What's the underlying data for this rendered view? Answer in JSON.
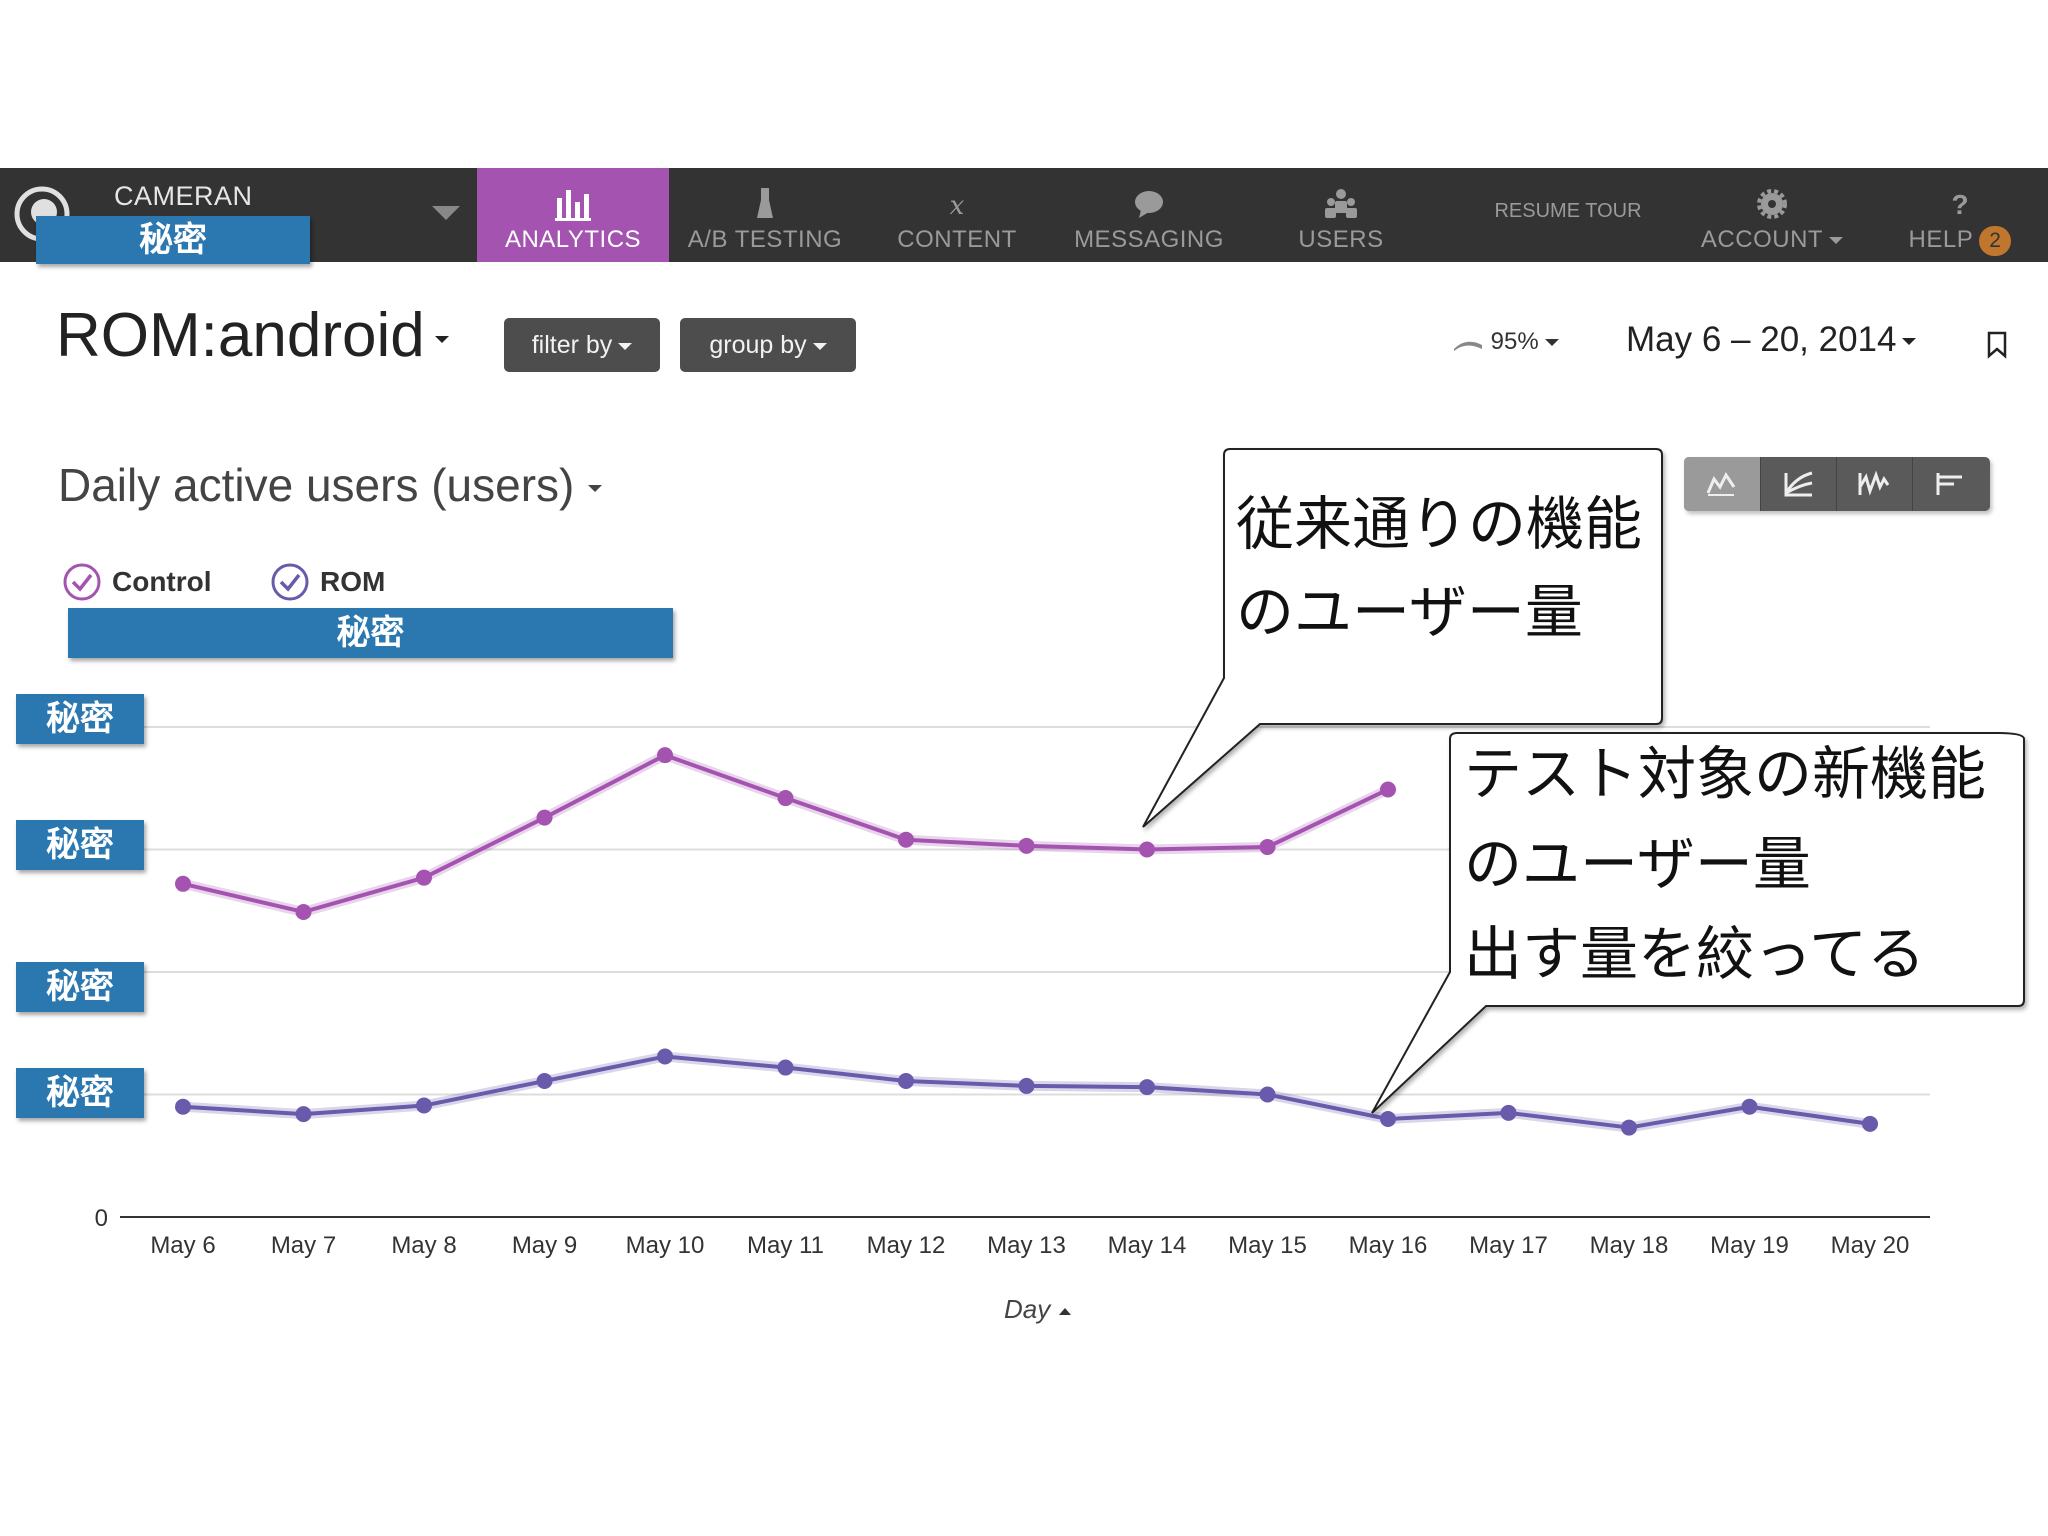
{
  "nav": {
    "app_name": "CAMERAN",
    "app_redacted": "秘密",
    "tabs": [
      {
        "label": "ANALYTICS",
        "icon": "bar-chart-icon",
        "active": true
      },
      {
        "label": "A/B TESTING",
        "icon": "flask-icon",
        "active": false
      },
      {
        "label": "CONTENT",
        "icon": "variable-x-icon",
        "active": false
      },
      {
        "label": "MESSAGING",
        "icon": "speech-bubble-icon",
        "active": false
      },
      {
        "label": "USERS",
        "icon": "users-icon",
        "active": false
      }
    ],
    "resume_tour": "RESUME TOUR",
    "account": "ACCOUNT",
    "help": "HELP",
    "help_badge": "2",
    "colors": {
      "bar": "#333333",
      "active_tab": "#a454b0",
      "badge": "#c0762c"
    }
  },
  "header": {
    "title": "ROM:android",
    "filter_label": "filter by",
    "group_label": "group by",
    "confidence": "95%",
    "date_range": "May 6 – 20, 2014"
  },
  "metric": {
    "title": "Daily active users (users)"
  },
  "legend": [
    {
      "label": "Control",
      "color": "#a454b0"
    },
    {
      "label": "ROM",
      "color": "#6a5aab"
    }
  ],
  "legend_redacted": "秘密",
  "y_redacted_labels": [
    "秘密",
    "秘密",
    "秘密",
    "秘密"
  ],
  "callouts": {
    "control_lines": [
      "従来通りの機能",
      "のユーザー量"
    ],
    "rom_lines": [
      "テスト対象の新機能",
      "のユーザー量",
      "出す量を絞ってる"
    ]
  },
  "chart_data": {
    "type": "line",
    "categories": [
      "May 6",
      "May 7",
      "May 8",
      "May 9",
      "May 10",
      "May 11",
      "May 12",
      "May 13",
      "May 14",
      "May 15",
      "May 16",
      "May 17",
      "May 18",
      "May 19",
      "May 20"
    ],
    "series": [
      {
        "name": "Control",
        "color": "#a454b0",
        "values": [
          272,
          249,
          277,
          326,
          377,
          342,
          308,
          303,
          300,
          302,
          349,
          null,
          null,
          null,
          null
        ]
      },
      {
        "name": "ROM",
        "color": "#6a5aab",
        "values": [
          90,
          84,
          91,
          111,
          131,
          122,
          111,
          107,
          106,
          100,
          80,
          85,
          73,
          90,
          76
        ]
      }
    ],
    "y_tick_labels": [
      "0"
    ],
    "ylim": [
      0,
      400
    ],
    "xlabel": "Day",
    "ylabel": "",
    "grid": true
  }
}
